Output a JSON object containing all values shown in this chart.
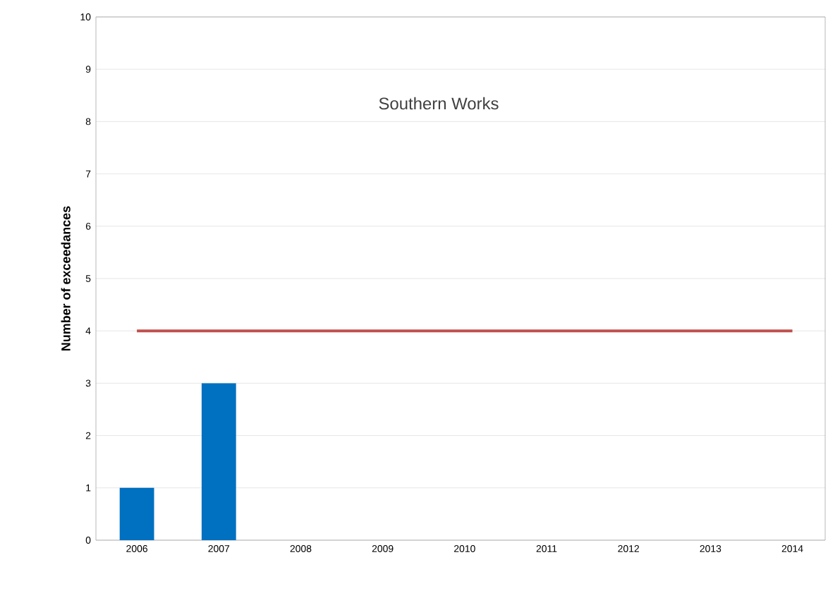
{
  "chart_data": {
    "type": "bar",
    "title": "Southern Works",
    "ylabel": "Number of exceedances",
    "categories": [
      "2006",
      "2007",
      "2008",
      "2009",
      "2010",
      "2011",
      "2012",
      "2013",
      "2014"
    ],
    "series": [
      {
        "color": "#0070c0",
        "values": [
          1,
          3,
          0,
          0,
          0,
          0,
          0,
          0,
          0
        ]
      },
      {
        "type": "line",
        "color": "#c0504d",
        "values": [
          4,
          4,
          4,
          4,
          4,
          4,
          4,
          4,
          4
        ]
      }
    ],
    "ylim": [
      0,
      10
    ],
    "yticks": [
      0,
      1,
      2,
      3,
      4,
      5,
      6,
      7,
      8,
      9,
      10
    ],
    "grid": "y"
  }
}
